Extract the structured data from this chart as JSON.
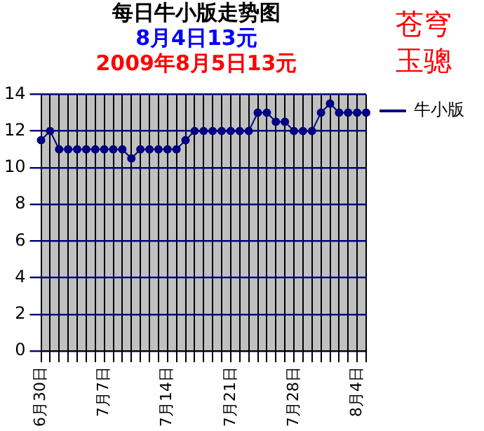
{
  "chart_data": {
    "type": "line",
    "title": "每日牛小版走势图",
    "subtitle": "8月4日13元",
    "annotations": [
      "2009年8月5日13元",
      "苍穹玉骢"
    ],
    "categories": [
      "6月30日",
      null,
      null,
      null,
      null,
      null,
      null,
      "7月7日",
      null,
      null,
      null,
      null,
      null,
      null,
      "7月14日",
      null,
      null,
      null,
      null,
      null,
      null,
      "7月21日",
      null,
      null,
      null,
      null,
      null,
      null,
      "7月28日",
      null,
      null,
      null,
      null,
      null,
      null,
      "8月4日",
      null
    ],
    "series": [
      {
        "name": "牛小版",
        "color": "#000080",
        "values": [
          11.5,
          12,
          11,
          11,
          11,
          11,
          11,
          11,
          11,
          11,
          10.5,
          11,
          11,
          11,
          11,
          11,
          11.5,
          12,
          12,
          12,
          12,
          12,
          12,
          12,
          13,
          13,
          12.5,
          12.5,
          12,
          12,
          12,
          13,
          13.5,
          13,
          13,
          13,
          13
        ]
      }
    ],
    "ylim": [
      0,
      14
    ],
    "yticks": [
      0,
      2,
      4,
      6,
      8,
      10,
      12,
      14
    ],
    "grid": true,
    "legend": "right",
    "marker": "circle",
    "line_style": "solid"
  }
}
